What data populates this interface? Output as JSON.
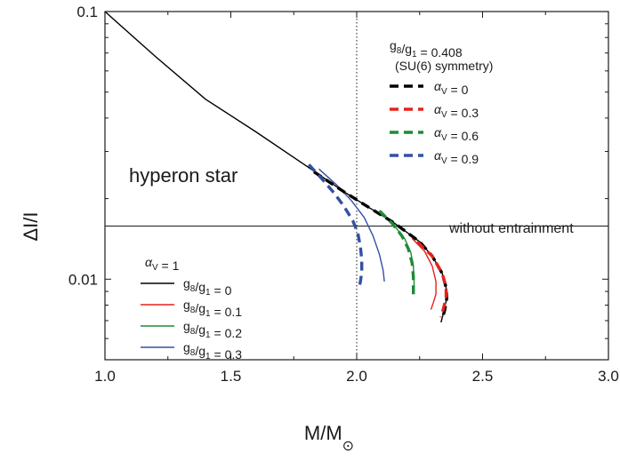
{
  "chart_data": {
    "type": "line",
    "xlabel": "M/M",
    "xlabel_sub": "⊙",
    "ylabel": "ΔI/I",
    "xlim": [
      1.0,
      3.0
    ],
    "ylim": [
      0.005,
      0.1
    ],
    "yscale": "log",
    "x_ticks": [
      "1.0",
      "1.5",
      "2.0",
      "2.5",
      "3.0"
    ],
    "y_ticks": [
      "0.01",
      "0.1"
    ],
    "grid": false,
    "annotations": {
      "hyperon": "hyperon star",
      "without": "without entrainment",
      "su6_ratio": "g8/g1 = 0.408",
      "su6_sym": "(SU(6) symmetry)"
    },
    "hline": {
      "y": 0.0158,
      "label": "without entrainment"
    },
    "vline": {
      "x": 2.0,
      "style": "dotted"
    },
    "legend_top": {
      "header1": "g8/g1 = 0.408",
      "header2": "(SU(6) symmetry)",
      "placement": "top-right",
      "entries": [
        {
          "label": "αV = 0",
          "color": "#000000"
        },
        {
          "label": "αV = 0.3",
          "color": "#e8211c"
        },
        {
          "label": "αV = 0.6",
          "color": "#1f8a36"
        },
        {
          "label": "αV = 0.9",
          "color": "#3350a3"
        }
      ]
    },
    "legend_bottom": {
      "header": "αV = 1",
      "placement": "bottom-left",
      "entries": [
        {
          "label": "g8/g1 = 0",
          "color": "#000000"
        },
        {
          "label": "g8/g1 = 0.1",
          "color": "#e8211c"
        },
        {
          "label": "g8/g1 = 0.2",
          "color": "#1f8a36"
        },
        {
          "label": "g8/g1 = 0.3",
          "color": "#3350a3"
        }
      ]
    },
    "series": [
      {
        "name": "g8/g1 = 0",
        "style": "solid",
        "color": "#000000",
        "points": [
          [
            1.0,
            0.1
          ],
          [
            1.2,
            0.068
          ],
          [
            1.4,
            0.047
          ],
          [
            1.6,
            0.0355
          ],
          [
            1.8,
            0.0265
          ],
          [
            1.95,
            0.0212
          ],
          [
            2.05,
            0.0185
          ],
          [
            2.15,
            0.0162
          ],
          [
            2.25,
            0.0138
          ],
          [
            2.3,
            0.0122
          ],
          [
            2.34,
            0.0105
          ],
          [
            2.355,
            0.0093
          ],
          [
            2.358,
            0.0085
          ],
          [
            2.345,
            0.0075
          ],
          [
            2.335,
            0.0069
          ]
        ]
      },
      {
        "name": "g8/g1 = 0.1",
        "style": "solid",
        "color": "#e8211c",
        "points": [
          [
            2.22,
            0.0142
          ],
          [
            2.27,
            0.0127
          ],
          [
            2.3,
            0.0112
          ],
          [
            2.315,
            0.0098
          ],
          [
            2.315,
            0.0088
          ],
          [
            2.305,
            0.0082
          ],
          [
            2.295,
            0.0077
          ]
        ]
      },
      {
        "name": "g8/g1 = 0.2",
        "style": "solid",
        "color": "#1f8a36",
        "points": [
          [
            2.1,
            0.0175
          ],
          [
            2.15,
            0.0158
          ],
          [
            2.19,
            0.0142
          ],
          [
            2.215,
            0.0126
          ],
          [
            2.225,
            0.0112
          ],
          [
            2.228,
            0.0098
          ],
          [
            2.228,
            0.0089
          ]
        ]
      },
      {
        "name": "g8/g1 = 0.3",
        "style": "solid",
        "color": "#3350a3",
        "points": [
          [
            1.85,
            0.0258
          ],
          [
            1.92,
            0.0225
          ],
          [
            1.98,
            0.0196
          ],
          [
            2.03,
            0.017
          ],
          [
            2.065,
            0.0145
          ],
          [
            2.09,
            0.0124
          ],
          [
            2.105,
            0.0108
          ],
          [
            2.11,
            0.0098
          ]
        ]
      },
      {
        "name": "αV = 0",
        "style": "dashed",
        "color": "#000000",
        "points": [
          [
            1.83,
            0.0252
          ],
          [
            1.95,
            0.0212
          ],
          [
            2.05,
            0.0185
          ],
          [
            2.15,
            0.0162
          ],
          [
            2.25,
            0.0138
          ],
          [
            2.3,
            0.0122
          ],
          [
            2.34,
            0.0105
          ],
          [
            2.355,
            0.0093
          ],
          [
            2.358,
            0.0085
          ],
          [
            2.35,
            0.0077
          ],
          [
            2.34,
            0.0071
          ]
        ]
      },
      {
        "name": "αV = 0.3",
        "style": "dashed",
        "color": "#e8211c",
        "points": [
          [
            2.24,
            0.0138
          ],
          [
            2.3,
            0.0122
          ],
          [
            2.34,
            0.0105
          ],
          [
            2.355,
            0.0093
          ],
          [
            2.355,
            0.0085
          ],
          [
            2.345,
            0.0078
          ],
          [
            2.335,
            0.0072
          ]
        ]
      },
      {
        "name": "αV = 0.6",
        "style": "dashed",
        "color": "#1f8a36",
        "points": [
          [
            2.09,
            0.018
          ],
          [
            2.14,
            0.0162
          ],
          [
            2.18,
            0.0145
          ],
          [
            2.205,
            0.013
          ],
          [
            2.22,
            0.0115
          ],
          [
            2.225,
            0.0102
          ],
          [
            2.225,
            0.0092
          ],
          [
            2.225,
            0.0086
          ]
        ]
      },
      {
        "name": "αV = 0.9",
        "style": "dashed",
        "color": "#3350a3",
        "points": [
          [
            1.81,
            0.0268
          ],
          [
            1.86,
            0.0238
          ],
          [
            1.91,
            0.021
          ],
          [
            1.95,
            0.0187
          ],
          [
            1.985,
            0.0165
          ],
          [
            2.005,
            0.0148
          ],
          [
            2.015,
            0.0132
          ],
          [
            2.02,
            0.0118
          ],
          [
            2.02,
            0.0106
          ],
          [
            2.015,
            0.0098
          ],
          [
            2.01,
            0.0093
          ]
        ]
      }
    ]
  }
}
